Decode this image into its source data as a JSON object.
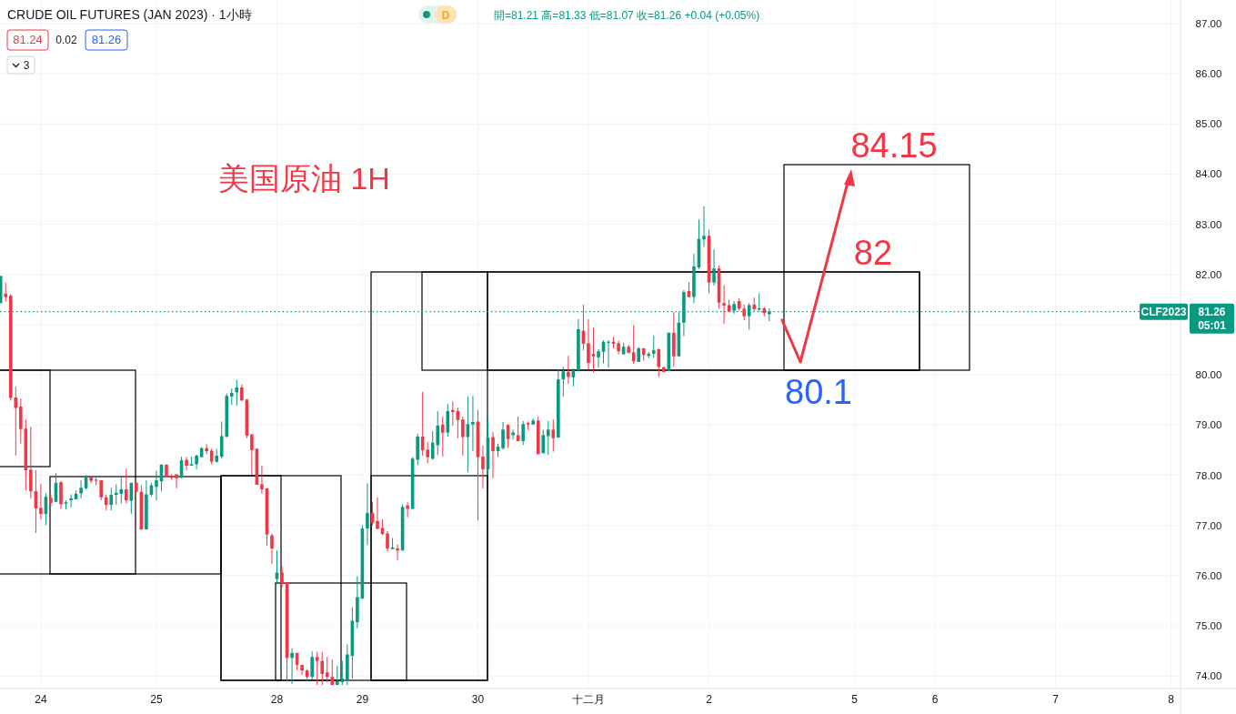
{
  "chart_data": {
    "type": "candlestick",
    "title": "CRUDE OIL FUTURES (JAN 2023) · 1小時",
    "subtitle": "開=81.21 高=81.33 低=81.07 收=81.26 +0.04 (+0.05%)",
    "annotations": [
      "81.24",
      "0.02",
      "81.26",
      "3",
      "D",
      "美国原油 1H",
      "05:01",
      "84.15",
      "82",
      "80.1"
    ],
    "categories": [
      null,
      null,
      null,
      null,
      null,
      null,
      null,
      null,
      "24",
      null,
      null,
      null,
      null,
      null,
      null,
      null,
      null,
      null,
      null,
      null,
      null,
      null,
      null,
      null,
      null,
      null,
      null,
      null,
      null,
      null,
      null,
      "25",
      null,
      null,
      null,
      null,
      null,
      null,
      null,
      null,
      null,
      null,
      null,
      null,
      null,
      null,
      null,
      null,
      null,
      null,
      null,
      null,
      null,
      null,
      null,
      "28",
      null,
      null,
      null,
      null,
      null,
      null,
      null,
      null,
      null,
      null,
      null,
      null,
      null,
      null,
      null,
      null,
      "29",
      null,
      null,
      null,
      null,
      null,
      null,
      null,
      null,
      null,
      null,
      null,
      null,
      null,
      null,
      null,
      null,
      null,
      null,
      null,
      null,
      null,
      null,
      "30",
      null,
      null,
      null,
      null,
      null,
      null,
      null,
      null,
      null,
      null,
      null,
      null,
      null,
      null,
      null,
      null,
      null,
      null,
      null,
      null,
      null,
      "十二月",
      null,
      null,
      null,
      null,
      null,
      null,
      null,
      null,
      null,
      null,
      null,
      null,
      null,
      null,
      null,
      null,
      null,
      null,
      null,
      null,
      null,
      null,
      null,
      "2",
      null,
      null,
      null,
      null,
      null,
      null,
      null,
      null,
      null,
      null,
      null,
      null,
      null,
      null,
      null,
      null,
      null,
      null,
      null,
      null,
      null,
      null,
      null,
      null,
      null,
      null,
      null,
      null,
      "5",
      null,
      null,
      null,
      null,
      null,
      null,
      null,
      null,
      null,
      null,
      null,
      null,
      null,
      null,
      null,
      "6",
      null,
      null,
      null,
      null,
      null,
      null,
      null,
      null,
      null,
      null,
      null,
      null,
      null,
      null,
      null,
      null,
      null,
      null,
      null,
      null,
      null,
      null,
      null,
      "7",
      null,
      null,
      null,
      null,
      null,
      null,
      null,
      null,
      null,
      null,
      null,
      null,
      null,
      null,
      null,
      null,
      null,
      null,
      null,
      null,
      null,
      null,
      "8",
      null
    ],
    "ylim": [
      73.75,
      87.47
    ],
    "yticks": [
      {
        "value": 74,
        "label": "74.00"
      },
      {
        "value": 75,
        "label": "75.00"
      },
      {
        "value": 76,
        "label": "76.00"
      },
      {
        "value": 77,
        "label": "77.00"
      },
      {
        "value": 78,
        "label": "78.00"
      },
      {
        "value": 79,
        "label": "79.00"
      },
      {
        "value": 80,
        "label": "80.00"
      },
      {
        "value": 81,
        "label": null
      },
      {
        "value": 82,
        "label": "82.00"
      },
      {
        "value": 83,
        "label": "83.00"
      },
      {
        "value": 84,
        "label": "84.00"
      },
      {
        "value": 85,
        "label": "85.00"
      },
      {
        "value": 86,
        "label": "86.00"
      },
      {
        "value": 87,
        "label": "87.00"
      }
    ],
    "grid": true,
    "ref_lines": [
      {
        "axis": "y",
        "value": 81.26,
        "label": "CLF2023",
        "color": "#089981",
        "line_style": "dotted"
      }
    ],
    "series": [
      {
        "ohlc": [
          [
            81.43,
            81.97,
            81.43,
            81.97
          ],
          [
            81.62,
            81.84,
            81.46,
            81.55
          ],
          [
            81.58,
            81.61,
            79.49,
            79.54
          ],
          [
            79.55,
            79.76,
            78.39,
            79.34
          ],
          [
            79.37,
            79.53,
            78.63,
            78.92
          ],
          [
            78.93,
            79.11,
            77.7,
            78.1
          ],
          [
            78.11,
            78.97,
            77.54,
            77.68
          ],
          [
            77.68,
            78.1,
            76.85,
            77.34
          ],
          [
            77.35,
            77.83,
            77.12,
            77.23
          ],
          [
            77.23,
            77.64,
            77.01,
            77.57
          ],
          [
            77.55,
            77.62,
            77.38,
            77.45
          ],
          [
            77.47,
            78.04,
            77.47,
            77.85
          ],
          [
            77.86,
            77.88,
            77.33,
            77.42
          ],
          [
            77.43,
            77.5,
            77.32,
            77.46
          ],
          [
            77.5,
            77.62,
            77.36,
            77.54
          ],
          [
            77.52,
            77.7,
            77.52,
            77.63
          ],
          [
            77.64,
            77.9,
            77.54,
            77.75
          ],
          [
            77.74,
            78.0,
            77.72,
            77.96
          ],
          [
            77.96,
            77.99,
            77.84,
            77.89
          ],
          [
            77.91,
            77.95,
            77.8,
            77.89
          ],
          [
            77.9,
            77.9,
            77.5,
            77.56
          ],
          [
            77.56,
            77.62,
            77.3,
            77.41
          ],
          [
            77.41,
            77.75,
            77.3,
            77.61
          ],
          [
            77.61,
            77.82,
            77.41,
            77.65
          ],
          [
            77.63,
            77.95,
            77.44,
            77.72
          ],
          [
            77.72,
            78.13,
            77.44,
            77.5
          ],
          [
            77.49,
            77.85,
            77.23,
            77.85
          ],
          [
            77.85,
            77.85,
            77.67,
            77.67
          ],
          [
            77.67,
            77.8,
            76.91,
            76.92
          ],
          [
            76.92,
            77.9,
            76.92,
            77.62
          ],
          [
            77.61,
            77.85,
            77.58,
            77.8
          ],
          [
            77.77,
            78.09,
            77.5,
            77.9
          ],
          [
            77.88,
            78.22,
            77.68,
            78.21
          ],
          [
            78.21,
            78.22,
            77.96,
            77.96
          ],
          [
            77.98,
            78.02,
            77.92,
            77.95
          ],
          [
            78.02,
            78.02,
            77.74,
            77.94
          ],
          [
            77.95,
            78.37,
            77.94,
            78.3
          ],
          [
            78.31,
            78.37,
            78.1,
            78.19
          ],
          [
            78.19,
            78.37,
            78.19,
            78.22
          ],
          [
            78.22,
            78.41,
            78.12,
            78.39
          ],
          [
            78.36,
            78.56,
            78.36,
            78.54
          ],
          [
            78.54,
            78.62,
            78.42,
            78.48
          ],
          [
            78.49,
            78.53,
            78.22,
            78.27
          ],
          [
            78.27,
            78.53,
            78.25,
            78.39
          ],
          [
            78.37,
            79.07,
            78.33,
            78.78
          ],
          [
            78.77,
            79.63,
            78.75,
            79.58
          ],
          [
            79.57,
            79.73,
            79.4,
            79.64
          ],
          [
            79.65,
            79.9,
            79.39,
            79.75
          ],
          [
            79.75,
            79.81,
            79.48,
            79.49
          ],
          [
            79.51,
            79.52,
            78.74,
            78.79
          ],
          [
            78.81,
            78.83,
            78.01,
            78.5
          ],
          [
            78.53,
            78.53,
            77.81,
            77.81
          ],
          [
            77.82,
            78.19,
            77.63,
            77.72
          ],
          [
            77.74,
            77.74,
            76.6,
            76.82
          ],
          [
            76.8,
            76.84,
            76.23,
            76.54
          ],
          [
            75.93,
            76.5,
            75.84,
            76.06
          ],
          [
            76.06,
            76.19,
            75.76,
            75.84
          ],
          [
            75.87,
            75.87,
            73.89,
            74.36
          ],
          [
            74.36,
            74.55,
            73.84,
            74.46
          ],
          [
            74.46,
            74.46,
            74.11,
            74.22
          ],
          [
            74.22,
            74.22,
            74.02,
            74.11
          ],
          [
            74.11,
            74.14,
            73.89,
            73.98
          ],
          [
            73.98,
            74.49,
            73.93,
            74.38
          ],
          [
            74.38,
            74.48,
            73.82,
            74.3
          ],
          [
            74.3,
            74.48,
            73.82,
            74.04
          ],
          [
            74.07,
            74.38,
            73.87,
            73.98
          ],
          [
            73.98,
            74.33,
            73.82,
            73.82
          ],
          [
            73.82,
            74.2,
            73.82,
            73.9
          ],
          [
            73.88,
            74.3,
            73.82,
            73.95
          ],
          [
            73.93,
            74.63,
            73.82,
            74.43
          ],
          [
            74.4,
            75.37,
            73.95,
            75.1
          ],
          [
            75.07,
            75.99,
            74.95,
            75.57
          ],
          [
            75.54,
            77.0,
            75.54,
            76.94
          ],
          [
            76.94,
            77.84,
            76.61,
            77.25
          ],
          [
            77.25,
            77.47,
            77.0,
            77.05
          ],
          [
            77.09,
            77.56,
            76.93,
            76.93
          ],
          [
            76.95,
            77.12,
            76.81,
            76.83
          ],
          [
            76.84,
            76.89,
            76.48,
            76.54
          ],
          [
            76.53,
            76.75,
            76.52,
            76.56
          ],
          [
            76.54,
            76.62,
            76.31,
            76.5
          ],
          [
            76.5,
            77.42,
            76.5,
            77.37
          ],
          [
            77.4,
            77.46,
            77.16,
            77.33
          ],
          [
            77.33,
            78.36,
            77.33,
            78.33
          ],
          [
            78.31,
            78.83,
            78.2,
            78.77
          ],
          [
            78.77,
            79.66,
            78.39,
            78.5
          ],
          [
            78.51,
            78.66,
            78.24,
            78.36
          ],
          [
            78.33,
            78.88,
            78.31,
            78.65
          ],
          [
            78.6,
            79.28,
            78.4,
            78.99
          ],
          [
            79.01,
            79.17,
            78.37,
            78.85
          ],
          [
            78.85,
            79.42,
            78.77,
            79.28
          ],
          [
            79.3,
            79.47,
            78.99,
            79.26
          ],
          [
            79.28,
            79.35,
            78.74,
            79.1
          ],
          [
            79.11,
            79.17,
            78.39,
            78.76
          ],
          [
            78.76,
            79.57,
            78.06,
            79.02
          ],
          [
            79.01,
            79.58,
            78.48,
            79.06
          ],
          [
            79.07,
            79.3,
            77.1,
            78.36
          ],
          [
            78.37,
            78.59,
            77.74,
            78.12
          ],
          [
            78.12,
            79.17,
            78.0,
            78.75
          ],
          [
            78.76,
            78.86,
            77.94,
            78.48
          ],
          [
            78.48,
            78.63,
            78.36,
            78.57
          ],
          [
            78.54,
            79.06,
            78.51,
            78.91
          ],
          [
            79.0,
            79.02,
            78.54,
            78.72
          ],
          [
            78.8,
            78.91,
            78.71,
            78.85
          ],
          [
            78.8,
            79.17,
            78.68,
            78.68
          ],
          [
            78.68,
            79.08,
            78.6,
            79.02
          ],
          [
            79.04,
            79.07,
            78.9,
            79.01
          ],
          [
            79.01,
            79.13,
            79.01,
            79.09
          ],
          [
            79.09,
            79.17,
            78.42,
            78.42
          ],
          [
            78.44,
            78.91,
            78.44,
            78.8
          ],
          [
            78.78,
            79.08,
            78.4,
            78.91
          ],
          [
            78.91,
            79.11,
            78.47,
            78.74
          ],
          [
            78.75,
            80.1,
            78.75,
            79.91
          ],
          [
            79.91,
            80.16,
            79.57,
            80.07
          ],
          [
            80.06,
            80.38,
            79.82,
            79.96
          ],
          [
            79.95,
            80.13,
            79.77,
            80.09
          ],
          [
            80.09,
            81.11,
            80.09,
            80.91
          ],
          [
            80.88,
            81.4,
            80.49,
            80.62
          ],
          [
            80.63,
            81.11,
            80.1,
            80.24
          ],
          [
            80.42,
            80.94,
            80.05,
            80.37
          ],
          [
            80.35,
            80.51,
            80.14,
            80.47
          ],
          [
            80.46,
            80.69,
            80.23,
            80.66
          ],
          [
            80.64,
            80.69,
            80.14,
            80.66
          ],
          [
            80.66,
            80.76,
            80.53,
            80.62
          ],
          [
            80.63,
            80.68,
            80.41,
            80.47
          ],
          [
            80.41,
            80.64,
            80.41,
            80.56
          ],
          [
            80.56,
            80.6,
            80.43,
            80.44
          ],
          [
            80.45,
            80.99,
            80.22,
            80.27
          ],
          [
            80.26,
            80.56,
            80.26,
            80.53
          ],
          [
            80.53,
            80.53,
            80.28,
            80.4
          ],
          [
            80.38,
            80.46,
            80.33,
            80.42
          ],
          [
            80.42,
            80.78,
            80.34,
            80.49
          ],
          [
            80.51,
            80.53,
            79.96,
            80.16
          ],
          [
            80.15,
            80.17,
            80.05,
            80.06
          ],
          [
            80.08,
            80.84,
            80.07,
            80.84
          ],
          [
            80.84,
            81.25,
            80.16,
            80.37
          ],
          [
            80.37,
            81.26,
            80.37,
            81.04
          ],
          [
            81.04,
            81.69,
            80.77,
            81.65
          ],
          [
            81.67,
            81.85,
            81.55,
            81.55
          ],
          [
            81.55,
            82.41,
            81.43,
            82.16
          ],
          [
            82.14,
            83.1,
            82.11,
            82.71
          ],
          [
            82.7,
            83.36,
            82.55,
            82.77
          ],
          [
            82.77,
            82.89,
            81.62,
            81.84
          ],
          [
            81.84,
            82.5,
            81.78,
            82.12
          ],
          [
            82.12,
            82.18,
            81.32,
            81.44
          ],
          [
            81.43,
            81.79,
            81.02,
            81.38
          ],
          [
            81.39,
            81.49,
            81.26,
            81.26
          ],
          [
            81.28,
            81.47,
            81.22,
            81.41
          ],
          [
            81.47,
            81.53,
            81.28,
            81.32
          ],
          [
            81.32,
            81.4,
            81.09,
            81.17
          ],
          [
            81.17,
            81.43,
            80.9,
            81.39
          ],
          [
            81.4,
            81.54,
            81.26,
            81.31
          ],
          [
            81.3,
            81.63,
            81.26,
            81.33
          ],
          [
            81.33,
            81.35,
            81.16,
            81.23
          ],
          [
            81.21,
            81.33,
            81.07,
            81.26
          ],
          null,
          null,
          null,
          null,
          null,
          null,
          null,
          null,
          null,
          null,
          null,
          null,
          null,
          null,
          null,
          null,
          null,
          null,
          null,
          null,
          null,
          null,
          null,
          null,
          null,
          null,
          null,
          null,
          null,
          null,
          null,
          null,
          null,
          null,
          null,
          null,
          null,
          null,
          null,
          null,
          null,
          null,
          null,
          null,
          null,
          null,
          null,
          null,
          null,
          null,
          null,
          null,
          null,
          null,
          null,
          null,
          null,
          null,
          null,
          null,
          null,
          null,
          null,
          null,
          null,
          null,
          null,
          null,
          null,
          null,
          null,
          null,
          null,
          null,
          null,
          null,
          null,
          null,
          null,
          null,
          null
        ]
      }
    ]
  }
}
